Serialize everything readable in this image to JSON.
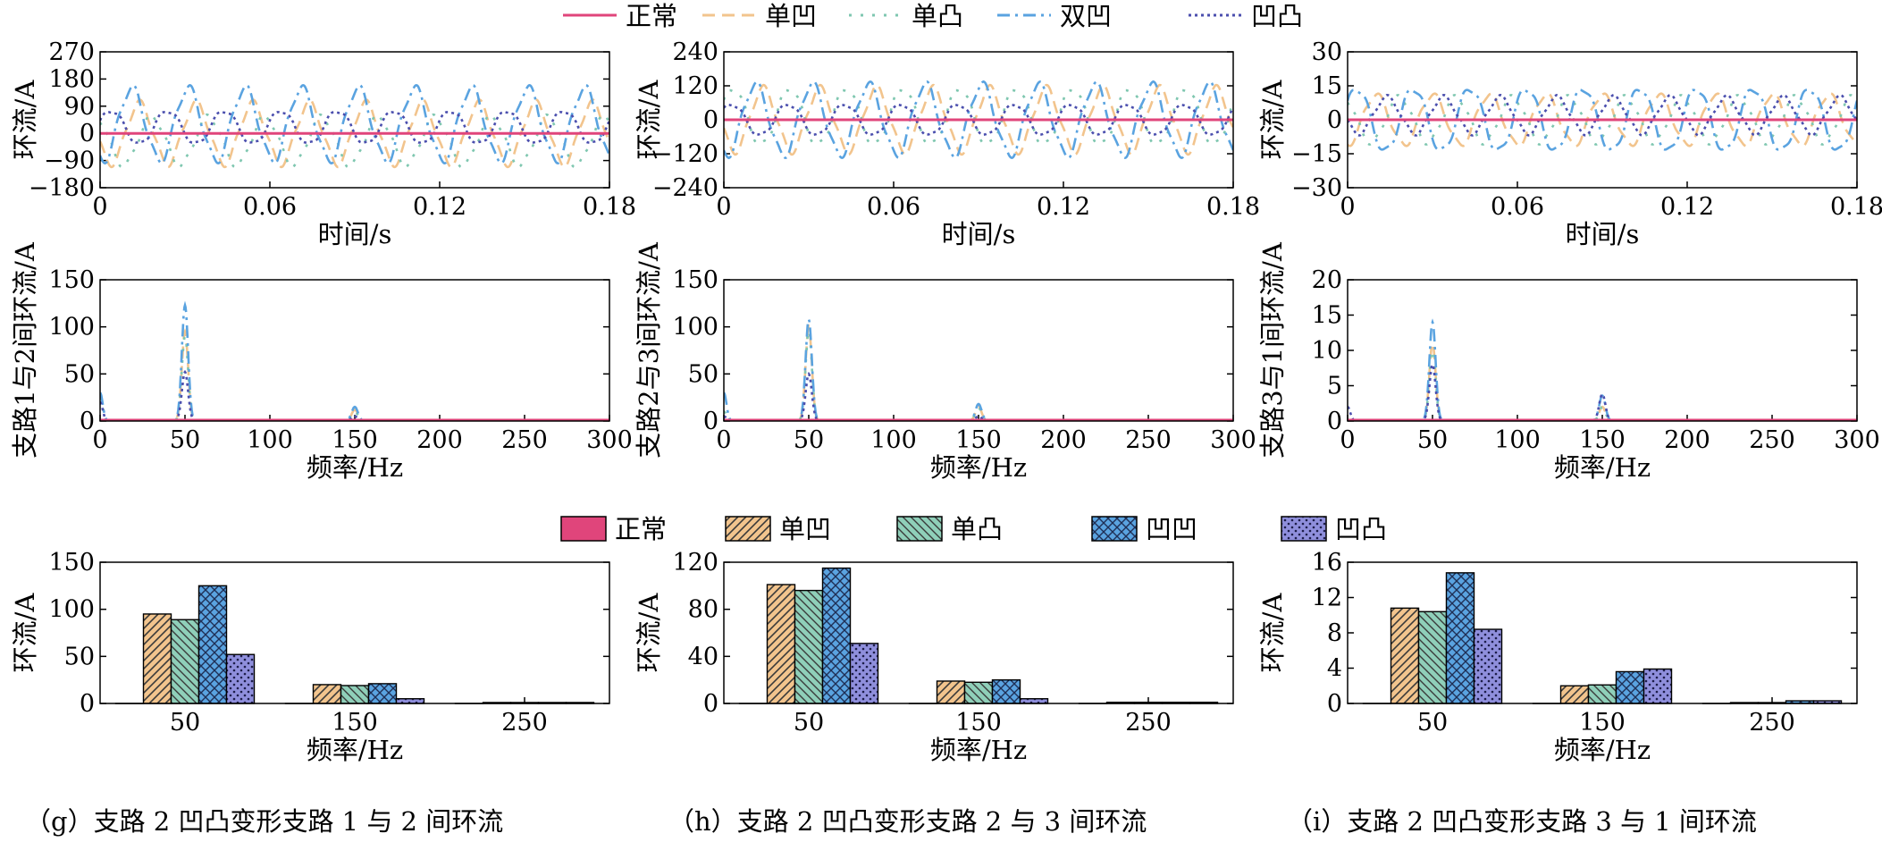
{
  "line_legend": [
    {
      "label": "正常",
      "color": "#e0457b",
      "style": "solid"
    },
    {
      "label": "单凹",
      "color": "#f2c48d",
      "style": "dash"
    },
    {
      "label": "单凸",
      "color": "#7fc7b0",
      "style": "dot-spaced"
    },
    {
      "label": "双凹",
      "color": "#5aa3e0",
      "style": "dashdot"
    },
    {
      "label": "凹凸",
      "color": "#4b4fae",
      "style": "dot"
    }
  ],
  "bar_legend": [
    {
      "label": "正常",
      "color": "#e0457b",
      "pattern": "solid"
    },
    {
      "label": "单凹",
      "color": "#f2c48d",
      "pattern": "diag"
    },
    {
      "label": "单凸",
      "color": "#8fcfb9",
      "pattern": "diag2"
    },
    {
      "label": "凹凹",
      "color": "#5aa3e0",
      "pattern": "cross"
    },
    {
      "label": "凹凸",
      "color": "#8f8fdc",
      "pattern": "dots"
    }
  ],
  "captions": [
    "（g）支路 2 凹凸变形支路 1 与 2 间环流",
    "（h）支路 2 凹凸变形支路 2 与 3 间环流",
    "（i）支路 2 凹凸变形支路 3 与 1 间环流"
  ],
  "chart_data": [
    {
      "type": "line",
      "panel": "g-time",
      "xlabel": "时间/s",
      "ylabel": "环流/A",
      "xlim": [
        0,
        0.18
      ],
      "ylim": [
        -180,
        270
      ],
      "xticks": [
        "0",
        "0.06",
        "0.12",
        "0.18"
      ],
      "yticks": [
        "270",
        "180",
        "90",
        "0",
        "−90",
        "−180"
      ],
      "series": [
        {
          "name": "正常",
          "amplitude": 0,
          "offset": 0,
          "phase_deg": 0
        },
        {
          "name": "单凹",
          "amplitude": 100,
          "offset": 0,
          "phase_deg": 200
        },
        {
          "name": "单凸",
          "amplitude": 80,
          "offset": -25,
          "phase_deg": 120
        },
        {
          "name": "双凹",
          "amplitude": 120,
          "offset": 30,
          "phase_deg": 250
        },
        {
          "name": "凹凸",
          "amplitude": 55,
          "offset": 20,
          "phase_deg": 20
        }
      ]
    },
    {
      "type": "line",
      "panel": "h-time",
      "xlabel": "时间/s",
      "ylabel": "环流/A",
      "xlim": [
        0,
        0.18
      ],
      "ylim": [
        -240,
        240
      ],
      "xticks": [
        "0",
        "0.06",
        "0.12",
        "0.18"
      ],
      "yticks": [
        "240",
        "120",
        "0",
        "−120",
        "−240"
      ],
      "series": [
        {
          "name": "正常",
          "amplitude": 0,
          "offset": 0,
          "phase_deg": 0
        },
        {
          "name": "单凹",
          "amplitude": 110,
          "offset": 0,
          "phase_deg": 200
        },
        {
          "name": "单凸",
          "amplitude": 100,
          "offset": 10,
          "phase_deg": 30
        },
        {
          "name": "双凹",
          "amplitude": 125,
          "offset": 0,
          "phase_deg": 250
        },
        {
          "name": "凹凸",
          "amplitude": 55,
          "offset": 0,
          "phase_deg": 40
        }
      ]
    },
    {
      "type": "line",
      "panel": "i-time",
      "xlabel": "时间/s",
      "ylabel": "环流/A",
      "xlim": [
        0,
        0.18
      ],
      "ylim": [
        -30,
        30
      ],
      "xticks": [
        "0",
        "0.06",
        "0.12",
        "0.18"
      ],
      "yticks": [
        "30",
        "15",
        "0",
        "−15",
        "−30"
      ],
      "series": [
        {
          "name": "正常",
          "amplitude": 0,
          "offset": 0,
          "phase_deg": 0
        },
        {
          "name": "单凹",
          "amplitude": 11,
          "offset": 0,
          "phase_deg": 270
        },
        {
          "name": "单凸",
          "amplitude": 10,
          "offset": 0,
          "phase_deg": 120
        },
        {
          "name": "双凹",
          "amplitude": 14,
          "offset": 0,
          "phase_deg": 30
        },
        {
          "name": "凹凸",
          "amplitude": 8,
          "offset": 2,
          "phase_deg": 200
        }
      ]
    },
    {
      "type": "spectrum",
      "panel": "g-fft",
      "xlabel": "频率/Hz",
      "ylabel": "支路1与2间环流/A",
      "xlim": [
        0,
        300
      ],
      "ylim": [
        0,
        150
      ],
      "xticks": [
        "0",
        "50",
        "100",
        "150",
        "200",
        "250",
        "300"
      ],
      "yticks": [
        "150",
        "100",
        "50",
        "0"
      ],
      "peaks": [
        {
          "name": "单凹",
          "dc": 0,
          "f50": 95,
          "f150": 12
        },
        {
          "name": "单凸",
          "dc": 25,
          "f50": 90,
          "f150": 10
        },
        {
          "name": "双凹",
          "dc": 30,
          "f50": 123,
          "f150": 15
        },
        {
          "name": "凹凸",
          "dc": 20,
          "f50": 52,
          "f150": 5
        }
      ]
    },
    {
      "type": "spectrum",
      "panel": "h-fft",
      "xlabel": "频率/Hz",
      "ylabel": "支路2与3间环流/A",
      "xlim": [
        0,
        300
      ],
      "ylim": [
        0,
        150
      ],
      "xticks": [
        "0",
        "50",
        "100",
        "150",
        "200",
        "250",
        "300"
      ],
      "yticks": [
        "150",
        "100",
        "50",
        "0"
      ],
      "peaks": [
        {
          "name": "单凹",
          "dc": 0,
          "f50": 100,
          "f150": 15
        },
        {
          "name": "单凸",
          "dc": 10,
          "f50": 96,
          "f150": 14
        },
        {
          "name": "双凹",
          "dc": 30,
          "f50": 108,
          "f150": 18
        },
        {
          "name": "凹凸",
          "dc": 5,
          "f50": 50,
          "f150": 5
        }
      ]
    },
    {
      "type": "spectrum",
      "panel": "i-fft",
      "xlabel": "频率/Hz",
      "ylabel": "支路3与1间环流/A",
      "xlim": [
        0,
        300
      ],
      "ylim": [
        0,
        20
      ],
      "xticks": [
        "0",
        "50",
        "100",
        "150",
        "200",
        "250",
        "300"
      ],
      "yticks": [
        "20",
        "15",
        "10",
        "5",
        "0"
      ],
      "peaks": [
        {
          "name": "单凹",
          "dc": 0,
          "f50": 11,
          "f150": 2
        },
        {
          "name": "单凸",
          "dc": 0,
          "f50": 10,
          "f150": 2
        },
        {
          "name": "双凹",
          "dc": 0,
          "f50": 14,
          "f150": 3.6
        },
        {
          "name": "凹凸",
          "dc": 2,
          "f50": 8,
          "f150": 3.8
        }
      ]
    },
    {
      "type": "bar",
      "panel": "g-bar",
      "xlabel": "频率/Hz",
      "ylabel": "环流/A",
      "ylim": [
        0,
        150
      ],
      "yticks": [
        "150",
        "100",
        "50",
        "0"
      ],
      "categories": [
        "50",
        "150",
        "250"
      ],
      "series": [
        {
          "name": "正常",
          "values": [
            0,
            0,
            0
          ]
        },
        {
          "name": "单凹",
          "values": [
            95,
            20,
            1
          ]
        },
        {
          "name": "单凸",
          "values": [
            89,
            19,
            1
          ]
        },
        {
          "name": "凹凹",
          "values": [
            125,
            21,
            1
          ]
        },
        {
          "name": "凹凸",
          "values": [
            52,
            5,
            1
          ]
        }
      ]
    },
    {
      "type": "bar",
      "panel": "h-bar",
      "xlabel": "频率/Hz",
      "ylabel": "环流/A",
      "ylim": [
        0,
        120
      ],
      "yticks": [
        "120",
        "80",
        "40",
        "0"
      ],
      "categories": [
        "50",
        "150",
        "250"
      ],
      "series": [
        {
          "name": "正常",
          "values": [
            0,
            0,
            0
          ]
        },
        {
          "name": "单凹",
          "values": [
            101,
            19,
            1
          ]
        },
        {
          "name": "单凸",
          "values": [
            96,
            18,
            1
          ]
        },
        {
          "name": "凹凹",
          "values": [
            115,
            20,
            1
          ]
        },
        {
          "name": "凹凸",
          "values": [
            51,
            4,
            1
          ]
        }
      ]
    },
    {
      "type": "bar",
      "panel": "i-bar",
      "xlabel": "频率/Hz",
      "ylabel": "环流/A",
      "ylim": [
        0,
        16
      ],
      "yticks": [
        "16",
        "12",
        "8",
        "4",
        "0"
      ],
      "categories": [
        "50",
        "150",
        "250"
      ],
      "series": [
        {
          "name": "正常",
          "values": [
            0,
            0,
            0
          ]
        },
        {
          "name": "单凹",
          "values": [
            10.8,
            2.0,
            0.1
          ]
        },
        {
          "name": "单凸",
          "values": [
            10.4,
            2.1,
            0.1
          ]
        },
        {
          "name": "凹凹",
          "values": [
            14.8,
            3.6,
            0.3
          ]
        },
        {
          "name": "凹凸",
          "values": [
            8.4,
            3.9,
            0.3
          ]
        }
      ]
    }
  ]
}
